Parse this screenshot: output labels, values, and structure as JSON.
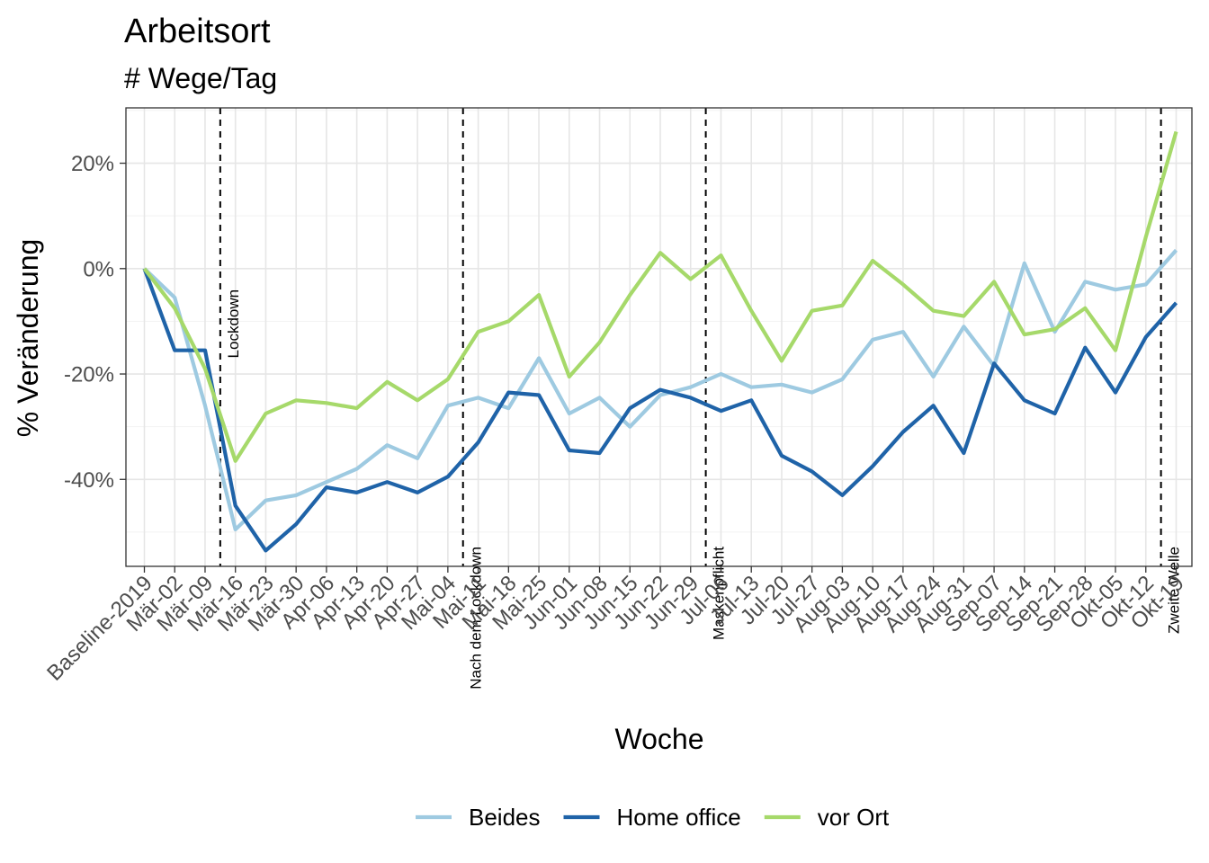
{
  "chart_data": {
    "type": "line",
    "title": "Arbeitsort",
    "subtitle": "# Wege/Tag",
    "xlabel": "Woche",
    "ylabel": "% Veränderung",
    "categories": [
      "Baseline-2019",
      "Mär-02",
      "Mär-09",
      "Mär-16",
      "Mär-23",
      "Mär-30",
      "Apr-06",
      "Apr-13",
      "Apr-20",
      "Apr-27",
      "Mai-04",
      "Mai-11",
      "Mai-18",
      "Mai-25",
      "Jun-01",
      "Jun-08",
      "Jun-15",
      "Jun-22",
      "Jun-29",
      "Jul-06",
      "Jul-13",
      "Jul-20",
      "Jul-27",
      "Aug-03",
      "Aug-10",
      "Aug-17",
      "Aug-24",
      "Aug-31",
      "Sep-07",
      "Sep-14",
      "Sep-21",
      "Sep-28",
      "Okt-05",
      "Okt-12",
      "Okt-19"
    ],
    "ylim": [
      -56.5,
      30.5
    ],
    "yticks": [
      20,
      0,
      -20,
      -40
    ],
    "ytick_labels": [
      "20%",
      "0%",
      "-20%",
      "-40%"
    ],
    "grid": true,
    "legend_position": "bottom",
    "series": [
      {
        "name": "Beides",
        "color": "#9ecae1",
        "values": [
          0,
          -5.5,
          -26,
          -49.5,
          -44,
          -43,
          -40.5,
          -38,
          -33.5,
          -36,
          -26,
          -24.5,
          -26.5,
          -17,
          -27.5,
          -24.5,
          -30,
          -24,
          -22.5,
          -20,
          -22.5,
          -22,
          -23.5,
          -21,
          -13.5,
          -12,
          -20.5,
          -11,
          -18.5,
          1,
          -12,
          -2.5,
          -4,
          -3,
          3.5
        ]
      },
      {
        "name": "Home office",
        "color": "#1f63a8",
        "values": [
          0,
          -15.5,
          -15.5,
          -45,
          -53.5,
          -48.5,
          -41.5,
          -42.5,
          -40.5,
          -42.5,
          -39.5,
          -33,
          -23.5,
          -24,
          -34.5,
          -35,
          -26.5,
          -23,
          -24.5,
          -27,
          -25,
          -35.5,
          -38.5,
          -43,
          -37.5,
          -31,
          -26,
          -35,
          -18,
          -25,
          -27.5,
          -15,
          -23.5,
          -13,
          -6.5
        ]
      },
      {
        "name": "vor Ort",
        "color": "#a6d96a",
        "values": [
          0,
          -7.5,
          -19,
          -36.5,
          -27.5,
          -25,
          -25.5,
          -26.5,
          -21.5,
          -25,
          -21,
          -12,
          -10,
          -5,
          -20.5,
          -14,
          -5,
          3,
          -2,
          2.5,
          -8,
          -17.5,
          -8,
          -7,
          1.5,
          -3,
          -8,
          -9,
          -2.5,
          -12.5,
          -11.5,
          -7.5,
          -15.5,
          6,
          26
        ]
      }
    ],
    "events": [
      {
        "label": "Lockdown",
        "x_after_category": "Mär-09"
      },
      {
        "label": "Nach dem Lockdown",
        "x_after_category": "Mai-04"
      },
      {
        "label": "Maskenpflicht",
        "x_after_category": "Jun-29"
      },
      {
        "label": "Zweite Welle",
        "x_after_category": "Okt-12"
      }
    ]
  }
}
